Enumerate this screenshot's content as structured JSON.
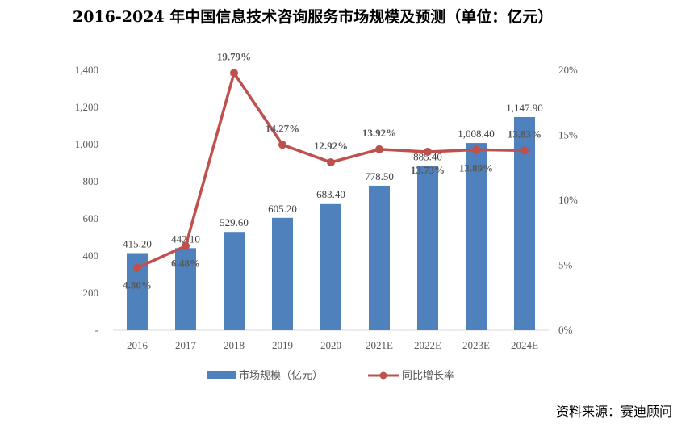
{
  "title": "2016-2024 年中国信息技术咨询服务市场规模及预测（单位：亿元）",
  "source": "资料来源：赛迪顾问",
  "colors": {
    "bar": "#4F81BD",
    "line": "#C0504D",
    "tick": "#595959"
  },
  "chart_data": {
    "type": "bar",
    "categories": [
      "2016",
      "2017",
      "2018",
      "2019",
      "2020",
      "2021E",
      "2022E",
      "2023E",
      "2024E"
    ],
    "series": [
      {
        "name": "市场规模（亿元）",
        "type": "bar",
        "axis": "left",
        "values": [
          415.2,
          442.1,
          529.6,
          605.2,
          683.4,
          778.5,
          885.4,
          1008.4,
          1147.9
        ],
        "labels": [
          "415.20",
          "442.10",
          "529.60",
          "605.20",
          "683.40",
          "778.50",
          "885.40",
          "1,008.40",
          "1,147.90"
        ]
      },
      {
        "name": "同比增长率",
        "type": "line",
        "axis": "right",
        "values": [
          4.8,
          6.48,
          19.79,
          14.27,
          12.92,
          13.92,
          13.73,
          13.89,
          13.83
        ],
        "labels": [
          "4.80%",
          "6.48%",
          "19.79%",
          "14.27%",
          "12.92%",
          "13.92%",
          "13.73%",
          "13.89%",
          "13.83%"
        ]
      }
    ],
    "y_left": {
      "ylim": [
        0,
        1400
      ],
      "ticks": [
        "-",
        "200",
        "400",
        "600",
        "800",
        "1,000",
        "1,200",
        "1,400"
      ]
    },
    "y_right": {
      "ylim": [
        0,
        20
      ],
      "ticks": [
        "0%",
        "5%",
        "10%",
        "15%",
        "20%"
      ]
    },
    "grid": false,
    "legend": "bottom"
  }
}
